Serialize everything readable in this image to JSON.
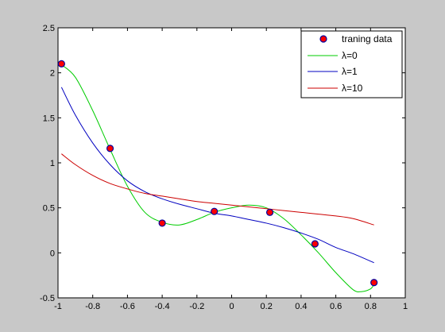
{
  "chart_data": {
    "type": "line",
    "title": "",
    "xlabel": "",
    "ylabel": "",
    "xlim": [
      -1,
      1
    ],
    "ylim": [
      -0.5,
      2.5
    ],
    "x_ticks": [
      -1,
      -0.8,
      -0.6,
      -0.4,
      -0.2,
      0,
      0.2,
      0.4,
      0.6,
      0.8,
      1
    ],
    "x_tick_labels": [
      "-1",
      "-0.8",
      "-0.6",
      "-0.4",
      "-0.2",
      "0",
      "0.2",
      "0.4",
      "0.6",
      "0.8",
      "1"
    ],
    "y_ticks": [
      -0.5,
      0,
      0.5,
      1,
      1.5,
      2,
      2.5
    ],
    "y_tick_labels": [
      "-0.5",
      "0",
      "0.5",
      "1",
      "1.5",
      "2",
      "2.5"
    ],
    "grid": false,
    "legend_position": "top-right",
    "points": {
      "name": "traning data",
      "color": "#ff0000",
      "edge_color": "#0000a0",
      "x": [
        -0.98,
        -0.7,
        -0.4,
        -0.1,
        0.22,
        0.48,
        0.82
      ],
      "y": [
        2.1,
        1.16,
        0.33,
        0.46,
        0.45,
        0.1,
        -0.33
      ]
    },
    "series": [
      {
        "name": "λ=0",
        "color": "#00cc00",
        "x": [
          -0.98,
          -0.9,
          -0.8,
          -0.7,
          -0.6,
          -0.5,
          -0.4,
          -0.3,
          -0.2,
          -0.1,
          0,
          0.1,
          0.2,
          0.3,
          0.4,
          0.5,
          0.6,
          0.7,
          0.75,
          0.8,
          0.82
        ],
        "y": [
          2.09,
          1.95,
          1.58,
          1.15,
          0.74,
          0.45,
          0.34,
          0.31,
          0.37,
          0.45,
          0.5,
          0.53,
          0.5,
          0.38,
          0.2,
          0.0,
          -0.22,
          -0.41,
          -0.43,
          -0.4,
          -0.35
        ]
      },
      {
        "name": "λ=1",
        "color": "#0000c0",
        "x": [
          -0.98,
          -0.9,
          -0.8,
          -0.7,
          -0.6,
          -0.5,
          -0.4,
          -0.3,
          -0.2,
          -0.1,
          0,
          0.1,
          0.2,
          0.3,
          0.4,
          0.5,
          0.6,
          0.7,
          0.82
        ],
        "y": [
          1.84,
          1.53,
          1.22,
          0.98,
          0.8,
          0.68,
          0.6,
          0.54,
          0.49,
          0.44,
          0.41,
          0.37,
          0.33,
          0.28,
          0.22,
          0.15,
          0.06,
          -0.01,
          -0.11
        ]
      },
      {
        "name": "λ=10",
        "color": "#cc0000",
        "x": [
          -0.98,
          -0.9,
          -0.8,
          -0.7,
          -0.6,
          -0.5,
          -0.4,
          -0.3,
          -0.2,
          -0.1,
          0,
          0.1,
          0.2,
          0.3,
          0.4,
          0.5,
          0.6,
          0.7,
          0.82
        ],
        "y": [
          1.1,
          0.98,
          0.86,
          0.77,
          0.71,
          0.66,
          0.63,
          0.6,
          0.57,
          0.55,
          0.53,
          0.51,
          0.49,
          0.47,
          0.45,
          0.43,
          0.41,
          0.38,
          0.31
        ]
      }
    ]
  }
}
